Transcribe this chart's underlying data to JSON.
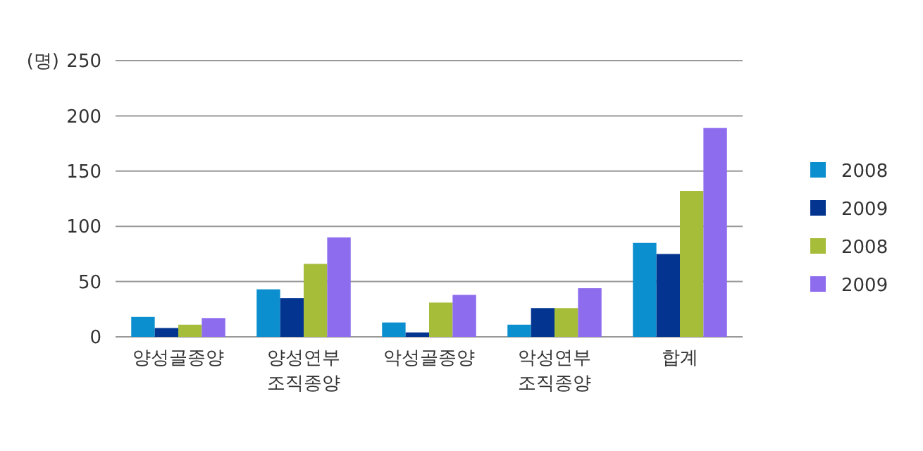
{
  "chart_data": {
    "type": "bar",
    "ylabel": "(명)",
    "categories": [
      "양성골종양",
      "양성연부 조직종양",
      "악성골종양",
      "악성연부 조직종양",
      "합계"
    ],
    "series": [
      {
        "name": "2008",
        "color": "#0b8fcf",
        "values": [
          18,
          43,
          13,
          11,
          85
        ]
      },
      {
        "name": "2009",
        "color": "#033590",
        "values": [
          8,
          35,
          4,
          26,
          75
        ]
      },
      {
        "name": "2008",
        "color": "#a6bd3a",
        "values": [
          11,
          66,
          31,
          26,
          132
        ]
      },
      {
        "name": "2009",
        "color": "#8e6cee",
        "values": [
          17,
          90,
          38,
          44,
          189
        ]
      }
    ],
    "ylim": [
      0,
      250
    ],
    "yticks": [
      0,
      50,
      100,
      150,
      200,
      250
    ],
    "grid": "y",
    "legend": "right"
  }
}
